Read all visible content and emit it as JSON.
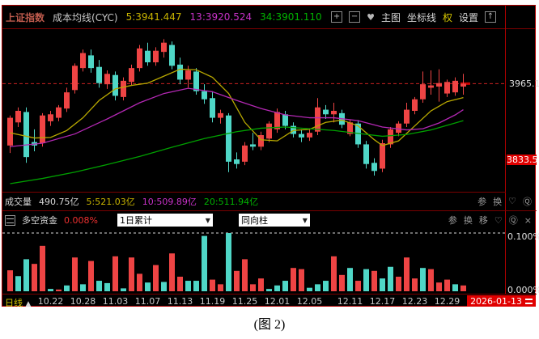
{
  "header": {
    "symbol": "上证指数",
    "indicator": "成本均线(CYC)",
    "ma5": "5:3941.447",
    "ma13": "13:3920.524",
    "ma34": "34:3901.110"
  },
  "controls": {
    "zoom_in": "+",
    "zoom_out": "−",
    "favorite": "♥",
    "main_chart": "主图",
    "coordinates": "坐标线",
    "rights": "权",
    "settings": "设置",
    "expand": "↑"
  },
  "price_axis": {
    "last_label": "3965.1",
    "marker_label": "3833.5"
  },
  "volume": {
    "title": "成交量",
    "total": "490.75亿",
    "ma5": "5:521.03亿",
    "ma10": "10:509.89亿",
    "ma20": "20:511.94亿",
    "tools": {
      "param": "参",
      "switch": "换",
      "favorite": "♡",
      "zoom": "Ⓠ"
    }
  },
  "fund": {
    "title": "多空资金",
    "value": "0.008%",
    "dropdown1": "1日累计",
    "dropdown2": "同向柱",
    "caret": "▼",
    "tools": {
      "param": "参",
      "switch": "换",
      "move": "移",
      "favorite": "♡",
      "zoom": "Ⓠ",
      "close": "×"
    }
  },
  "scale": {
    "top": "0.100%",
    "bottom": "0.000%"
  },
  "axis": {
    "period": "日线",
    "arrow": "▲",
    "date_box": "2026-01-13"
  },
  "caption": "(图 2)",
  "colors": {
    "up": "#ee4444",
    "down": "#4fd7c7",
    "ma5": "#b8a800",
    "ma13": "#b428b4",
    "ma34": "#00a000",
    "dashed_price": "#cc2222",
    "frame": "#b00000",
    "accent": "#e00000"
  },
  "chart_data": [
    {
      "type": "candlestick",
      "title": "上证指数 成本均线(CYC) 日线",
      "ylim": [
        3778,
        4058
      ],
      "last_price": 3965.1,
      "marker_price": 3833.5,
      "up_color": "#ee4444",
      "down_color": "#4fd7c7",
      "candles": [
        [
          3858,
          3910,
          3845,
          3906
        ],
        [
          3898,
          3924,
          3890,
          3918
        ],
        [
          3916,
          3924,
          3828,
          3838
        ],
        [
          3864,
          3886,
          3848,
          3858
        ],
        [
          3862,
          3914,
          3856,
          3910
        ],
        [
          3900,
          3918,
          3892,
          3912
        ],
        [
          3906,
          3928,
          3900,
          3924
        ],
        [
          3922,
          3958,
          3916,
          3950
        ],
        [
          3954,
          4000,
          3948,
          3996
        ],
        [
          3992,
          4024,
          3986,
          4018
        ],
        [
          4014,
          4024,
          3984,
          3992
        ],
        [
          3994,
          4006,
          3958,
          3966
        ],
        [
          3964,
          3988,
          3956,
          3982
        ],
        [
          3980,
          3986,
          3936,
          3944
        ],
        [
          3942,
          3976,
          3936,
          3970
        ],
        [
          3968,
          3998,
          3962,
          3992
        ],
        [
          3992,
          4032,
          3986,
          4026
        ],
        [
          4022,
          4036,
          3996,
          4002
        ],
        [
          4002,
          4028,
          3996,
          4022
        ],
        [
          4020,
          4042,
          4010,
          4036
        ],
        [
          4032,
          4038,
          3990,
          3996
        ],
        [
          3998,
          4010,
          3964,
          3972
        ],
        [
          3972,
          3996,
          3958,
          3988
        ],
        [
          3986,
          3992,
          3946,
          3952
        ],
        [
          3952,
          3964,
          3930,
          3938
        ],
        [
          3940,
          3952,
          3898,
          3906
        ],
        [
          3906,
          3920,
          3896,
          3914
        ],
        [
          3910,
          3914,
          3812,
          3830
        ],
        [
          3834,
          3846,
          3818,
          3826
        ],
        [
          3830,
          3864,
          3824,
          3858
        ],
        [
          3860,
          3880,
          3850,
          3856
        ],
        [
          3856,
          3882,
          3850,
          3876
        ],
        [
          3870,
          3900,
          3864,
          3896
        ],
        [
          3886,
          3922,
          3880,
          3916
        ],
        [
          3912,
          3918,
          3886,
          3892
        ],
        [
          3892,
          3898,
          3872,
          3878
        ],
        [
          3878,
          3886,
          3864,
          3872
        ],
        [
          3872,
          3888,
          3866,
          3880
        ],
        [
          3882,
          3940,
          3876,
          3924
        ],
        [
          3920,
          3928,
          3904,
          3912
        ],
        [
          3912,
          3932,
          3898,
          3918
        ],
        [
          3914,
          3920,
          3888,
          3894
        ],
        [
          3878,
          3902,
          3874,
          3898
        ],
        [
          3896,
          3902,
          3854,
          3860
        ],
        [
          3860,
          3866,
          3818,
          3826
        ],
        [
          3828,
          3836,
          3806,
          3814
        ],
        [
          3818,
          3868,
          3812,
          3862
        ],
        [
          3860,
          3890,
          3854,
          3886
        ],
        [
          3880,
          3900,
          3874,
          3896
        ],
        [
          3896,
          3932,
          3890,
          3920
        ],
        [
          3918,
          3942,
          3912,
          3938
        ],
        [
          3938,
          3986,
          3932,
          3964
        ],
        [
          3958,
          3988,
          3946,
          3962
        ],
        [
          3960,
          3990,
          3934,
          3966
        ],
        [
          3948,
          3972,
          3942,
          3968
        ],
        [
          3950,
          3976,
          3944,
          3970
        ],
        [
          3960,
          3982,
          3946,
          3965
        ]
      ],
      "overlays": [
        {
          "name": "CYC5",
          "color": "#b8a800",
          "points": [
            [
              0,
              3880
            ],
            [
              3,
              3871
            ],
            [
              5,
              3872
            ],
            [
              7,
              3884
            ],
            [
              9,
              3906
            ],
            [
              11,
              3936
            ],
            [
              13,
              3956
            ],
            [
              15,
              3962
            ],
            [
              17,
              3966
            ],
            [
              19,
              3978
            ],
            [
              21,
              3990
            ],
            [
              23,
              3989
            ],
            [
              25,
              3976
            ],
            [
              27,
              3948
            ],
            [
              29,
              3898
            ],
            [
              31,
              3868
            ],
            [
              33,
              3866
            ],
            [
              35,
              3884
            ],
            [
              37,
              3886
            ],
            [
              39,
              3898
            ],
            [
              41,
              3902
            ],
            [
              43,
              3892
            ],
            [
              45,
              3868
            ],
            [
              46,
              3858
            ],
            [
              48,
              3866
            ],
            [
              50,
              3892
            ],
            [
              52,
              3918
            ],
            [
              54,
              3934
            ],
            [
              56,
              3941
            ]
          ]
        },
        {
          "name": "CYC13",
          "color": "#b428b4",
          "points": [
            [
              0,
              3856
            ],
            [
              4,
              3862
            ],
            [
              8,
              3878
            ],
            [
              12,
              3904
            ],
            [
              16,
              3932
            ],
            [
              19,
              3948
            ],
            [
              22,
              3957
            ],
            [
              25,
              3951
            ],
            [
              28,
              3936
            ],
            [
              31,
              3922
            ],
            [
              34,
              3911
            ],
            [
              37,
              3906
            ],
            [
              40,
              3906
            ],
            [
              43,
              3901
            ],
            [
              46,
              3890
            ],
            [
              49,
              3885
            ],
            [
              51,
              3887
            ],
            [
              53,
              3897
            ],
            [
              55,
              3911
            ],
            [
              56,
              3920
            ]
          ]
        },
        {
          "name": "CYC34",
          "color": "#00a000",
          "points": [
            [
              0,
              3792
            ],
            [
              4,
              3801
            ],
            [
              8,
              3812
            ],
            [
              12,
              3825
            ],
            [
              16,
              3839
            ],
            [
              20,
              3855
            ],
            [
              24,
              3870
            ],
            [
              28,
              3882
            ],
            [
              31,
              3888
            ],
            [
              34,
              3890
            ],
            [
              37,
              3887
            ],
            [
              40,
              3884
            ],
            [
              43,
              3879
            ],
            [
              46,
              3874
            ],
            [
              49,
              3877
            ],
            [
              52,
              3885
            ],
            [
              54,
              3893
            ],
            [
              56,
              3901
            ]
          ]
        }
      ],
      "x_ticks": [
        {
          "i": 5,
          "label": "10.22"
        },
        {
          "i": 9,
          "label": "10.28"
        },
        {
          "i": 13,
          "label": "11.03"
        },
        {
          "i": 17,
          "label": "11.07"
        },
        {
          "i": 21,
          "label": "11.13"
        },
        {
          "i": 25,
          "label": "11.19"
        },
        {
          "i": 29,
          "label": "11.25"
        },
        {
          "i": 33,
          "label": "12.01"
        },
        {
          "i": 37,
          "label": "12.05"
        },
        {
          "i": 42,
          "label": "12.11"
        },
        {
          "i": 46,
          "label": "12.17"
        },
        {
          "i": 50,
          "label": "12.23"
        },
        {
          "i": 54,
          "label": "12.29"
        }
      ]
    },
    {
      "type": "bar",
      "title": "多空资金 1日累计 同向柱",
      "ylabel_top": "0.100%",
      "ylabel_bottom": "0.000%",
      "ylim": [
        0,
        0.1
      ],
      "values": [
        0.036,
        0.026,
        0.055,
        0.047,
        0.078,
        0.004,
        0.003,
        0.01,
        0.058,
        0.012,
        0.052,
        0.018,
        0.014,
        0.06,
        0.005,
        0.058,
        0.03,
        0.015,
        0.045,
        0.016,
        0.065,
        0.025,
        0.018,
        0.018,
        0.095,
        0.02,
        0.012,
        0.1,
        0.035,
        0.055,
        0.012,
        0.022,
        0.004,
        0.01,
        0.018,
        0.04,
        0.038,
        0.006,
        0.012,
        0.018,
        0.06,
        0.028,
        0.04,
        0.018,
        0.038,
        0.035,
        0.022,
        0.042,
        0.025,
        0.058,
        0.022,
        0.04,
        0.038,
        0.015,
        0.02,
        0.012,
        0.01
      ],
      "directions": [
        "r",
        "c",
        "c",
        "r",
        "r",
        "c",
        "r",
        "c",
        "r",
        "c",
        "r",
        "c",
        "c",
        "r",
        "c",
        "r",
        "r",
        "c",
        "r",
        "c",
        "r",
        "r",
        "c",
        "c",
        "c",
        "r",
        "r",
        "c",
        "r",
        "r",
        "r",
        "r",
        "c",
        "c",
        "c",
        "r",
        "r",
        "c",
        "c",
        "c",
        "r",
        "r",
        "c",
        "r",
        "c",
        "r",
        "c",
        "c",
        "r",
        "r",
        "r",
        "c",
        "r",
        "r",
        "r",
        "c",
        "r"
      ]
    }
  ]
}
